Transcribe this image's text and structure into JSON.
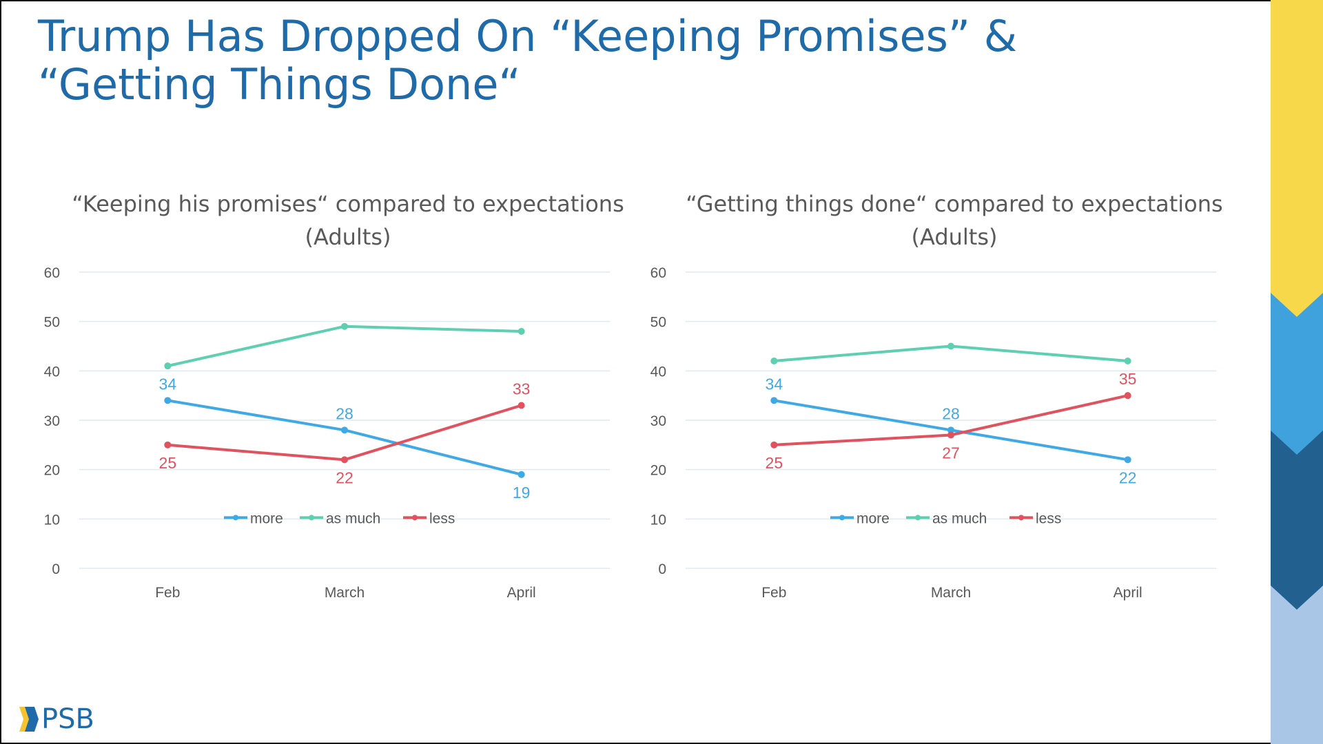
{
  "slide": {
    "title": "Trump Has Dropped On “Keeping Promises” & “Getting Things Done“",
    "logo_text": "PSB",
    "side_colors": [
      "#f6d84a",
      "#3fa2dc",
      "#21608f",
      "#aac6e7"
    ]
  },
  "chart_data": [
    {
      "type": "line",
      "title": "“Keeping his promises“ compared to expectations (Adults)",
      "categories": [
        "Feb",
        "March",
        "April"
      ],
      "ylim": [
        0,
        60
      ],
      "yticks": [
        "0",
        "10",
        "20",
        "30",
        "40",
        "50",
        "60"
      ],
      "grid": true,
      "legend": "bottom",
      "series": [
        {
          "name": "more",
          "values": [
            34,
            28,
            19
          ],
          "color": "#3fa9e6",
          "labeled": true
        },
        {
          "name": "as much",
          "values": [
            41,
            49,
            48
          ],
          "color": "#5ecfb1",
          "labeled": false
        },
        {
          "name": "less",
          "values": [
            25,
            22,
            33
          ],
          "color": "#e0525e",
          "labeled": true
        }
      ]
    },
    {
      "type": "line",
      "title": "“Getting things done“ compared to expectations (Adults)",
      "categories": [
        "Feb",
        "March",
        "April"
      ],
      "ylim": [
        0,
        60
      ],
      "yticks": [
        "0",
        "10",
        "20",
        "30",
        "40",
        "50",
        "60"
      ],
      "grid": true,
      "legend": "bottom",
      "series": [
        {
          "name": "more",
          "values": [
            34,
            28,
            22
          ],
          "color": "#3fa9e6",
          "labeled": true
        },
        {
          "name": "as much",
          "values": [
            42,
            45,
            42
          ],
          "color": "#5ecfb1",
          "labeled": false
        },
        {
          "name": "less",
          "values": [
            25,
            27,
            35
          ],
          "color": "#e0525e",
          "labeled": true
        }
      ]
    }
  ]
}
